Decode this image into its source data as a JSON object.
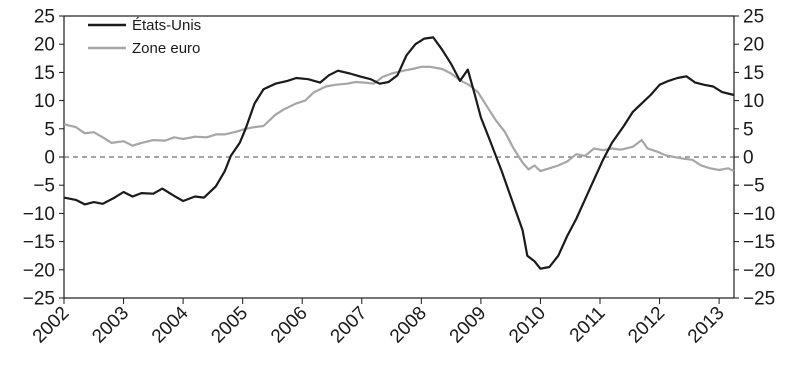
{
  "chart_data": {
    "type": "line",
    "title": "",
    "xlabel": "",
    "ylabel": "",
    "ylim": [
      -25,
      25
    ],
    "xlim": [
      2002.0,
      2013.25
    ],
    "y_ticks": [
      -25,
      -20,
      -15,
      -10,
      -5,
      0,
      5,
      10,
      15,
      20,
      25
    ],
    "y_tick_labels": [
      "−25",
      "−20",
      "−15",
      "−10",
      "−5",
      "0",
      "5",
      "10",
      "15",
      "20",
      "25"
    ],
    "x_tick_labels": [
      "2002",
      "2003",
      "2004",
      "2005",
      "2006",
      "2007",
      "2008",
      "2009",
      "2010",
      "2011",
      "2012",
      "2013"
    ],
    "secondary_y_axis": true,
    "grid": false,
    "zero_reference_line": "dashed",
    "legend_position": "top-left",
    "series": [
      {
        "name": "États-Unis",
        "color": "#1a1a1a",
        "points": [
          [
            2002.0,
            -7.2
          ],
          [
            2002.2,
            -7.6
          ],
          [
            2002.35,
            -8.4
          ],
          [
            2002.5,
            -8.0
          ],
          [
            2002.65,
            -8.3
          ],
          [
            2002.85,
            -7.2
          ],
          [
            2003.0,
            -6.2
          ],
          [
            2003.15,
            -7.0
          ],
          [
            2003.3,
            -6.4
          ],
          [
            2003.5,
            -6.5
          ],
          [
            2003.65,
            -5.6
          ],
          [
            2003.85,
            -6.9
          ],
          [
            2004.0,
            -7.8
          ],
          [
            2004.2,
            -7.0
          ],
          [
            2004.35,
            -7.2
          ],
          [
            2004.55,
            -5.2
          ],
          [
            2004.7,
            -2.5
          ],
          [
            2004.8,
            0.2
          ],
          [
            2004.95,
            2.5
          ],
          [
            2005.05,
            5.0
          ],
          [
            2005.2,
            9.5
          ],
          [
            2005.35,
            12.0
          ],
          [
            2005.55,
            13.0
          ],
          [
            2005.75,
            13.5
          ],
          [
            2005.9,
            14.0
          ],
          [
            2006.1,
            13.8
          ],
          [
            2006.3,
            13.2
          ],
          [
            2006.45,
            14.5
          ],
          [
            2006.6,
            15.3
          ],
          [
            2006.8,
            14.8
          ],
          [
            2007.0,
            14.2
          ],
          [
            2007.15,
            13.8
          ],
          [
            2007.3,
            13.0
          ],
          [
            2007.45,
            13.3
          ],
          [
            2007.6,
            14.5
          ],
          [
            2007.75,
            18.0
          ],
          [
            2007.9,
            20.0
          ],
          [
            2008.05,
            21.0
          ],
          [
            2008.2,
            21.2
          ],
          [
            2008.35,
            19.0
          ],
          [
            2008.5,
            16.5
          ],
          [
            2008.65,
            13.5
          ],
          [
            2008.78,
            15.5
          ],
          [
            2008.9,
            11.0
          ],
          [
            2009.0,
            7.0
          ],
          [
            2009.15,
            3.0
          ],
          [
            2009.35,
            -2.5
          ],
          [
            2009.55,
            -8.5
          ],
          [
            2009.7,
            -13.0
          ],
          [
            2009.78,
            -17.5
          ],
          [
            2009.9,
            -18.5
          ],
          [
            2010.0,
            -19.8
          ],
          [
            2010.15,
            -19.5
          ],
          [
            2010.3,
            -17.5
          ],
          [
            2010.45,
            -14.0
          ],
          [
            2010.6,
            -11.0
          ],
          [
            2010.75,
            -7.5
          ],
          [
            2010.9,
            -4.0
          ],
          [
            2011.05,
            -0.5
          ],
          [
            2011.2,
            2.5
          ],
          [
            2011.4,
            5.5
          ],
          [
            2011.55,
            8.0
          ],
          [
            2011.7,
            9.5
          ],
          [
            2011.85,
            11.0
          ],
          [
            2012.0,
            12.8
          ],
          [
            2012.15,
            13.5
          ],
          [
            2012.3,
            14.0
          ],
          [
            2012.45,
            14.3
          ],
          [
            2012.6,
            13.2
          ],
          [
            2012.75,
            12.8
          ],
          [
            2012.9,
            12.5
          ],
          [
            2013.05,
            11.5
          ],
          [
            2013.25,
            11.0
          ]
        ]
      },
      {
        "name": "Zone euro",
        "color": "#a6a6a6",
        "points": [
          [
            2002.0,
            5.8
          ],
          [
            2002.2,
            5.3
          ],
          [
            2002.35,
            4.2
          ],
          [
            2002.5,
            4.4
          ],
          [
            2002.65,
            3.5
          ],
          [
            2002.8,
            2.5
          ],
          [
            2003.0,
            2.8
          ],
          [
            2003.15,
            2.0
          ],
          [
            2003.3,
            2.5
          ],
          [
            2003.5,
            3.0
          ],
          [
            2003.7,
            2.9
          ],
          [
            2003.85,
            3.5
          ],
          [
            2004.0,
            3.2
          ],
          [
            2004.2,
            3.6
          ],
          [
            2004.4,
            3.5
          ],
          [
            2004.55,
            4.0
          ],
          [
            2004.7,
            4.0
          ],
          [
            2004.9,
            4.5
          ],
          [
            2005.05,
            5.0
          ],
          [
            2005.2,
            5.3
          ],
          [
            2005.35,
            5.5
          ],
          [
            2005.55,
            7.5
          ],
          [
            2005.7,
            8.5
          ],
          [
            2005.9,
            9.5
          ],
          [
            2006.05,
            10.0
          ],
          [
            2006.2,
            11.5
          ],
          [
            2006.4,
            12.5
          ],
          [
            2006.55,
            12.8
          ],
          [
            2006.75,
            13.0
          ],
          [
            2006.9,
            13.3
          ],
          [
            2007.05,
            13.2
          ],
          [
            2007.2,
            13.0
          ],
          [
            2007.35,
            14.2
          ],
          [
            2007.5,
            14.8
          ],
          [
            2007.7,
            15.3
          ],
          [
            2007.85,
            15.6
          ],
          [
            2008.0,
            16.0
          ],
          [
            2008.15,
            16.0
          ],
          [
            2008.35,
            15.6
          ],
          [
            2008.5,
            14.8
          ],
          [
            2008.65,
            13.6
          ],
          [
            2008.8,
            12.8
          ],
          [
            2008.95,
            11.5
          ],
          [
            2009.1,
            9.0
          ],
          [
            2009.25,
            6.5
          ],
          [
            2009.4,
            4.5
          ],
          [
            2009.55,
            1.5
          ],
          [
            2009.7,
            -1.0
          ],
          [
            2009.8,
            -2.2
          ],
          [
            2009.9,
            -1.5
          ],
          [
            2010.0,
            -2.5
          ],
          [
            2010.15,
            -2.0
          ],
          [
            2010.3,
            -1.5
          ],
          [
            2010.45,
            -0.8
          ],
          [
            2010.6,
            0.5
          ],
          [
            2010.75,
            0.2
          ],
          [
            2010.9,
            1.5
          ],
          [
            2011.05,
            1.2
          ],
          [
            2011.2,
            1.5
          ],
          [
            2011.35,
            1.3
          ],
          [
            2011.55,
            1.8
          ],
          [
            2011.7,
            3.0
          ],
          [
            2011.8,
            1.5
          ],
          [
            2011.95,
            1.0
          ],
          [
            2012.1,
            0.3
          ],
          [
            2012.25,
            0.0
          ],
          [
            2012.4,
            -0.3
          ],
          [
            2012.55,
            -0.5
          ],
          [
            2012.7,
            -1.5
          ],
          [
            2012.85,
            -2.0
          ],
          [
            2013.0,
            -2.3
          ],
          [
            2013.15,
            -2.0
          ],
          [
            2013.25,
            -2.5
          ]
        ]
      }
    ]
  }
}
